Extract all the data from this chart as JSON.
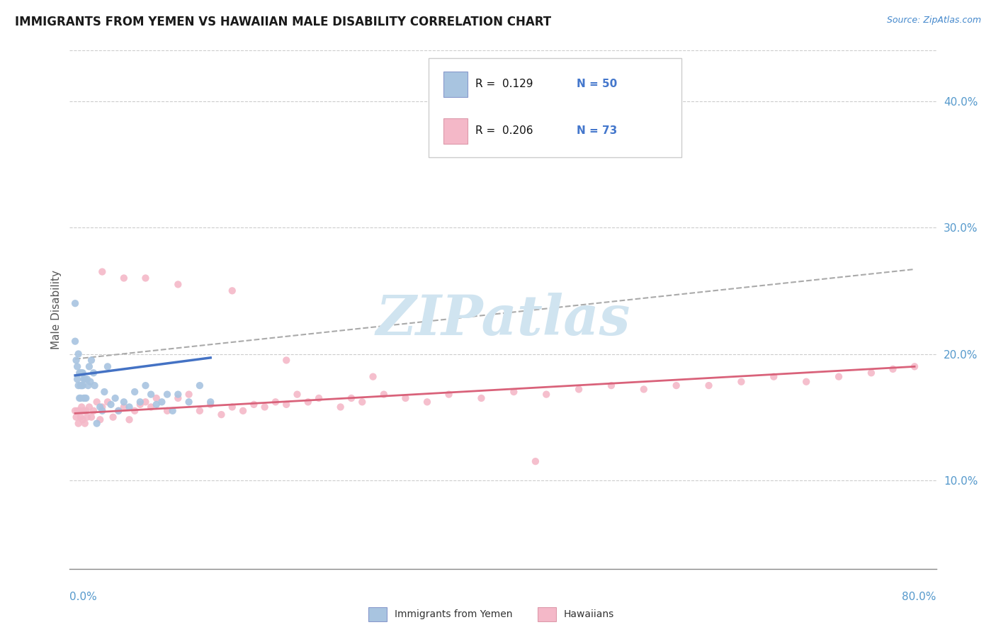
{
  "title": "IMMIGRANTS FROM YEMEN VS HAWAIIAN MALE DISABILITY CORRELATION CHART",
  "source_text": "Source: ZipAtlas.com",
  "ylabel": "Male Disability",
  "right_yticks": [
    0.1,
    0.2,
    0.3,
    0.4
  ],
  "right_yticklabels": [
    "10.0%",
    "20.0%",
    "30.0%",
    "40.0%"
  ],
  "xlim": [
    0.0,
    0.8
  ],
  "ylim": [
    0.03,
    0.44
  ],
  "legend_r1": "R =  0.129",
  "legend_n1": "N = 50",
  "legend_r2": "R =  0.206",
  "legend_n2": "N = 73",
  "legend_label1": "Immigrants from Yemen",
  "legend_label2": "Hawaiians",
  "blue_color": "#A8C4E0",
  "pink_color": "#F4B8C8",
  "blue_line_color": "#4472C4",
  "pink_line_color": "#D9627A",
  "dot_size": 55,
  "watermark": "ZIPatlas",
  "watermark_color": "#D0E4F0",
  "grid_color": "#CCCCCC",
  "background_color": "#FFFFFF",
  "yemen_x": [
    0.005,
    0.005,
    0.006,
    0.007,
    0.007,
    0.008,
    0.008,
    0.009,
    0.009,
    0.01,
    0.01,
    0.01,
    0.011,
    0.011,
    0.012,
    0.012,
    0.013,
    0.013,
    0.014,
    0.014,
    0.015,
    0.016,
    0.017,
    0.018,
    0.019,
    0.02,
    0.022,
    0.023,
    0.025,
    0.028,
    0.03,
    0.032,
    0.035,
    0.038,
    0.042,
    0.045,
    0.05,
    0.055,
    0.06,
    0.065,
    0.07,
    0.075,
    0.08,
    0.085,
    0.09,
    0.095,
    0.1,
    0.11,
    0.12,
    0.13
  ],
  "yemen_y": [
    0.24,
    0.21,
    0.195,
    0.19,
    0.18,
    0.2,
    0.175,
    0.185,
    0.165,
    0.185,
    0.175,
    0.165,
    0.185,
    0.175,
    0.185,
    0.175,
    0.18,
    0.165,
    0.18,
    0.165,
    0.165,
    0.18,
    0.175,
    0.19,
    0.178,
    0.195,
    0.185,
    0.175,
    0.145,
    0.158,
    0.155,
    0.17,
    0.19,
    0.16,
    0.165,
    0.155,
    0.162,
    0.158,
    0.17,
    0.162,
    0.175,
    0.168,
    0.16,
    0.162,
    0.168,
    0.155,
    0.168,
    0.162,
    0.175,
    0.162
  ],
  "hawaii_x": [
    0.005,
    0.006,
    0.007,
    0.008,
    0.009,
    0.01,
    0.011,
    0.012,
    0.013,
    0.014,
    0.015,
    0.016,
    0.018,
    0.02,
    0.022,
    0.025,
    0.028,
    0.03,
    0.035,
    0.04,
    0.045,
    0.05,
    0.055,
    0.06,
    0.065,
    0.07,
    0.075,
    0.08,
    0.09,
    0.1,
    0.11,
    0.12,
    0.13,
    0.14,
    0.15,
    0.16,
    0.17,
    0.18,
    0.19,
    0.2,
    0.21,
    0.22,
    0.23,
    0.25,
    0.26,
    0.27,
    0.29,
    0.31,
    0.33,
    0.35,
    0.38,
    0.41,
    0.44,
    0.47,
    0.5,
    0.53,
    0.56,
    0.59,
    0.62,
    0.65,
    0.68,
    0.71,
    0.74,
    0.76,
    0.78,
    0.03,
    0.05,
    0.07,
    0.1,
    0.15,
    0.2,
    0.28,
    0.43
  ],
  "hawaii_y": [
    0.155,
    0.15,
    0.155,
    0.145,
    0.155,
    0.15,
    0.158,
    0.148,
    0.155,
    0.145,
    0.155,
    0.15,
    0.158,
    0.15,
    0.155,
    0.162,
    0.148,
    0.158,
    0.162,
    0.15,
    0.155,
    0.158,
    0.148,
    0.155,
    0.16,
    0.162,
    0.158,
    0.165,
    0.155,
    0.165,
    0.168,
    0.155,
    0.16,
    0.152,
    0.158,
    0.155,
    0.16,
    0.158,
    0.162,
    0.16,
    0.168,
    0.162,
    0.165,
    0.158,
    0.165,
    0.162,
    0.168,
    0.165,
    0.162,
    0.168,
    0.165,
    0.17,
    0.168,
    0.172,
    0.175,
    0.172,
    0.175,
    0.175,
    0.178,
    0.182,
    0.178,
    0.182,
    0.185,
    0.188,
    0.19,
    0.265,
    0.26,
    0.26,
    0.255,
    0.25,
    0.195,
    0.182,
    0.115
  ],
  "blue_trend_x": [
    0.005,
    0.13
  ],
  "blue_trend_y_start": 0.183,
  "blue_trend_y_end": 0.197,
  "pink_trend_x": [
    0.005,
    0.78
  ],
  "pink_trend_y_start": 0.153,
  "pink_trend_y_end": 0.19,
  "dash_trend_x": [
    0.005,
    0.78
  ],
  "dash_trend_y_start": 0.196,
  "dash_trend_y_end": 0.267
}
